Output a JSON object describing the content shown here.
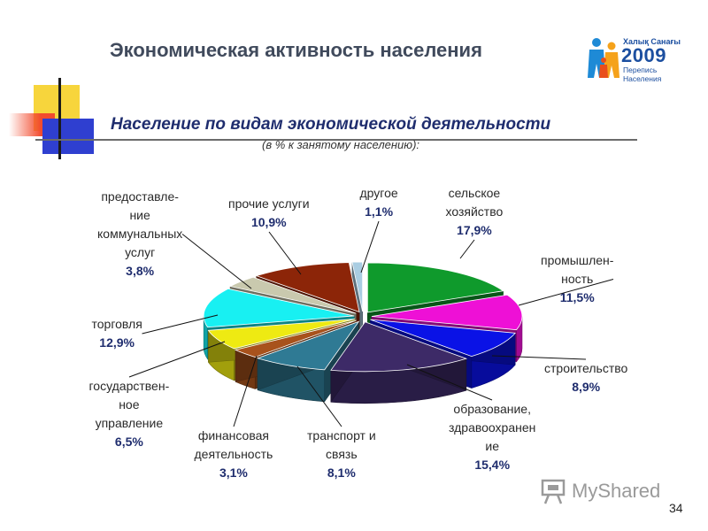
{
  "slide": {
    "title": "Экономическая активность населения",
    "page_number": "34"
  },
  "logo": {
    "title": "Халық Санағы",
    "year": "2009",
    "line1": "Перепись",
    "line2": "Населения"
  },
  "watermark": {
    "text": "MyShared"
  },
  "chart_data": {
    "type": "pie",
    "title": "Население по видам экономической деятельности",
    "subtitle": "(в % к занятому населению):",
    "slices": [
      {
        "label": "сельское хозяйство",
        "display_lines": [
          "сельское",
          "хозяйство"
        ],
        "value": 17.9,
        "value_label": "17,9%",
        "color": "#0f9a2c"
      },
      {
        "label": "промышленность",
        "display_lines": [
          "промышлен-",
          "ность"
        ],
        "value": 11.5,
        "value_label": "11,5%",
        "color": "#ee10d6"
      },
      {
        "label": "строительство",
        "display_lines": [
          "строительство"
        ],
        "value": 8.9,
        "value_label": "8,9%",
        "color": "#0a12e6"
      },
      {
        "label": "образование, здравоохранение",
        "display_lines": [
          "образование,",
          "здравоохранен",
          "ие"
        ],
        "value": 15.4,
        "value_label": "15,4%",
        "color": "#3d2a67"
      },
      {
        "label": "транспорт и связь",
        "display_lines": [
          "транспорт и",
          "связь"
        ],
        "value": 8.1,
        "value_label": "8,1%",
        "color": "#2f7a94"
      },
      {
        "label": "финансовая деятельность",
        "display_lines": [
          "финансовая",
          "деятельность"
        ],
        "value": 3.1,
        "value_label": "3,1%",
        "color": "#a8521c"
      },
      {
        "label": "государственное управление",
        "display_lines": [
          "государствен-",
          "ное",
          "управление"
        ],
        "value": 6.5,
        "value_label": "6,5%",
        "color": "#eeea12"
      },
      {
        "label": "торговля",
        "display_lines": [
          "торговля"
        ],
        "value": 12.9,
        "value_label": "12,9%",
        "color": "#18f0f2"
      },
      {
        "label": "предоставление коммунальных услуг",
        "display_lines": [
          "предоставле-",
          "ние",
          "коммунальных",
          "услуг"
        ],
        "value": 3.8,
        "value_label": "3,8%",
        "color": "#c9c9ae"
      },
      {
        "label": "прочие услуги",
        "display_lines": [
          "прочие услуги"
        ],
        "value": 10.9,
        "value_label": "10,9%",
        "color": "#8c2508"
      },
      {
        "label": "другое",
        "display_lines": [
          "другое"
        ],
        "value": 1.1,
        "value_label": "1,1%",
        "color": "#a9cde2"
      }
    ]
  }
}
